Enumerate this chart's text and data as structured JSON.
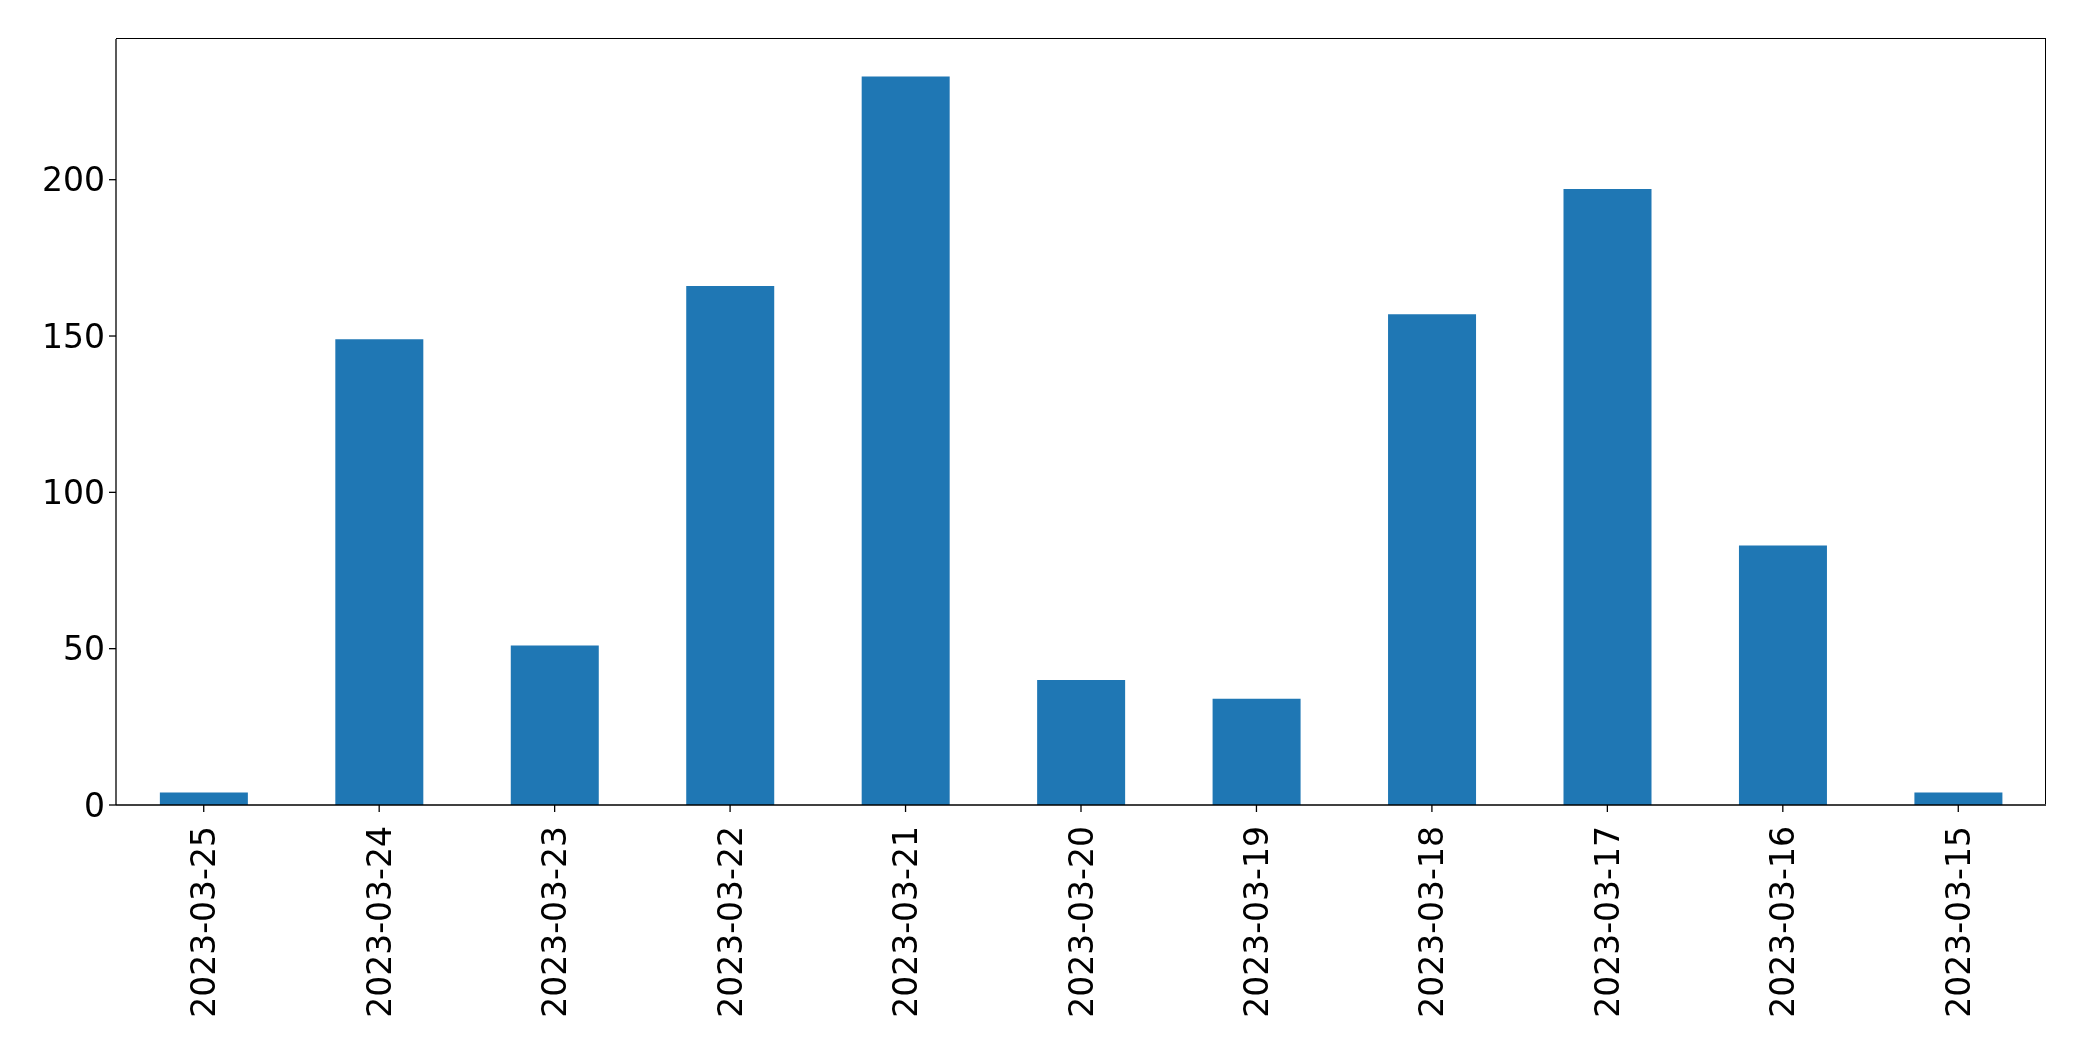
{
  "chart_data": {
    "type": "bar",
    "categories": [
      "2023-03-25",
      "2023-03-24",
      "2023-03-23",
      "2023-03-22",
      "2023-03-21",
      "2023-03-20",
      "2023-03-19",
      "2023-03-18",
      "2023-03-17",
      "2023-03-16",
      "2023-03-15"
    ],
    "values": [
      4,
      149,
      51,
      166,
      233,
      40,
      34,
      157,
      197,
      83,
      4
    ],
    "color": "#1f77b4",
    "ylim": [
      0,
      245
    ],
    "yticks": [
      0,
      50,
      100,
      150,
      200
    ]
  }
}
